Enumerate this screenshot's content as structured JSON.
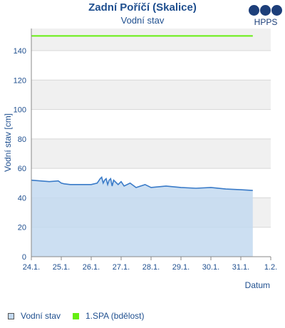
{
  "header": {
    "title": "Zadní Poříčí (Skalice)",
    "subtitle": "Vodní stav"
  },
  "logo": {
    "text": "HPPS",
    "color": "#1d3f7a"
  },
  "chart_data": {
    "type": "area",
    "title": "Zadní Poříčí (Skalice)",
    "subtitle": "Vodní stav",
    "xlabel": "Datum",
    "ylabel": "Vodní stav [cm]",
    "ylim": [
      0,
      155
    ],
    "yticks": [
      0,
      20,
      40,
      60,
      80,
      100,
      120,
      140
    ],
    "xticks": [
      "24.1.",
      "25.1.",
      "26.1.",
      "27.1.",
      "28.1.",
      "29.1.",
      "30.1.",
      "31.1.",
      "1.2."
    ],
    "xlim_days": [
      0,
      8
    ],
    "grid": true,
    "legend_position": "bottom",
    "series": [
      {
        "name": "Vodní stav",
        "type": "area",
        "color": "#3a7bc8",
        "fill": "#c3d9f0",
        "x_days": [
          0,
          0.3,
          0.6,
          0.9,
          1.0,
          1.1,
          1.3,
          1.6,
          2.0,
          2.2,
          2.3,
          2.35,
          2.4,
          2.45,
          2.5,
          2.55,
          2.6,
          2.65,
          2.7,
          2.75,
          2.8,
          2.9,
          3.0,
          3.1,
          3.3,
          3.5,
          3.8,
          4.0,
          4.5,
          5.0,
          5.5,
          6.0,
          6.5,
          7.0,
          7.4
        ],
        "values": [
          52,
          51.5,
          51,
          51.5,
          50,
          49.5,
          49,
          49,
          49,
          50,
          53,
          54,
          50,
          52,
          53,
          49,
          52,
          53,
          48,
          52,
          51,
          49,
          51,
          48,
          50,
          47,
          49,
          47,
          48,
          47,
          46.5,
          47,
          46,
          45.5,
          45
        ]
      },
      {
        "name": "1.SPA (bdělost)",
        "type": "line",
        "color": "#66ee11",
        "x_days": [
          0,
          7.4
        ],
        "values": [
          150,
          150
        ]
      }
    ]
  },
  "legend": [
    {
      "label": "Vodní stav",
      "color": "#c3d9f0",
      "border": "#555555"
    },
    {
      "label": "1.SPA (bdělost)",
      "color": "#66ee11",
      "border": "#66ee11"
    }
  ]
}
